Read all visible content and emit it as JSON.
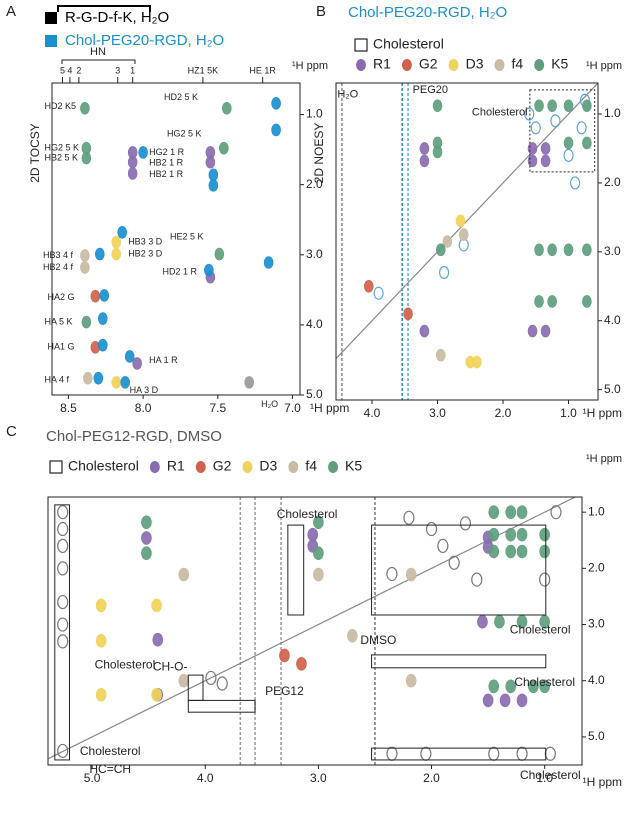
{
  "chart_data": [
    {
      "type": "scatter",
      "panel": "A",
      "ylabel": "2D TOCSY",
      "xlabel": "¹H ppm",
      "ylabel_right": "¹H ppm",
      "hn_label": "HN",
      "xlim": [
        8.61,
        6.95
      ],
      "ylim": [
        0.55,
        5.0
      ],
      "xticks": [
        8.5,
        {
          "value": 8,
          "label": "8.0"
        },
        7.5,
        {
          "value": 7,
          "label": "7.0"
        }
      ],
      "yticks": [
        {
          "value": 1,
          "label": "1.0"
        },
        {
          "value": 2,
          "label": "2.0"
        },
        {
          "value": 3,
          "label": "3.0"
        },
        {
          "value": 4,
          "label": "4.0"
        },
        {
          "value": 5,
          "label": "5.0"
        }
      ],
      "top_ticks": [
        {
          "value": 8.54,
          "label": "5"
        },
        {
          "value": 8.49,
          "label": "4"
        },
        {
          "value": 8.43,
          "label": "2"
        },
        {
          "value": 8.17,
          "label": "3"
        },
        {
          "value": 8.07,
          "label": "1"
        },
        {
          "value": 7.6,
          "label": "HZ1 5K"
        },
        {
          "value": 7.2,
          "label": "HE 1R"
        }
      ],
      "series": [
        {
          "name": "R-G-D-f-K, H₂O",
          "color": "#000000",
          "x": [
            8.39,
            8.38,
            8.38,
            8.07,
            8.07,
            8.07,
            7.44,
            7.46,
            7.55,
            7.55,
            8.39,
            8.39,
            8.18,
            8.18,
            7.49,
            7.55,
            8.32,
            8.38,
            8.32,
            8.04,
            8.37,
            8.18,
            7.29
          ],
          "y": [
            0.91,
            1.48,
            1.62,
            1.54,
            1.68,
            1.84,
            0.91,
            1.48,
            1.54,
            1.68,
            3.01,
            3.18,
            2.82,
            2.99,
            2.99,
            3.32,
            3.59,
            3.96,
            4.32,
            4.55,
            4.76,
            4.82,
            4.82
          ],
          "colors": [
            "#5e9e7e",
            "#5e9e7e",
            "#5e9e7e",
            "#8a6bb0",
            "#8a6bb0",
            "#8a6bb0",
            "#5e9e7e",
            "#5e9e7e",
            "#8a6bb0",
            "#8a6bb0",
            "#c9bba4",
            "#c9bba4",
            "#f0d35a",
            "#f0d35a",
            "#5e9e7e",
            "#8a6bb0",
            "#d0614c",
            "#5e9e7e",
            "#d0614c",
            "#8a6bb0",
            "#c9bba4",
            "#f0d35a",
            "#999999"
          ]
        },
        {
          "name": "Chol-PEG20-RGD, H₂O",
          "color": "#1a8fd0",
          "x": [
            7.11,
            7.11,
            8.0,
            7.53,
            7.53,
            8.29,
            8.14,
            7.16,
            7.56,
            8.26,
            8.27,
            8.27,
            8.09,
            8.3,
            8.12
          ],
          "y": [
            0.84,
            1.22,
            1.54,
            1.86,
            2.01,
            2.99,
            2.68,
            3.11,
            3.22,
            3.58,
            3.91,
            4.29,
            4.45,
            4.76,
            4.82
          ]
        }
      ],
      "annotations": [
        {
          "text": "HD2 K5",
          "x": 8.66,
          "y": 0.89
        },
        {
          "text": "HG2 5 K",
          "x": 8.66,
          "y": 1.48
        },
        {
          "text": "HB2 5 K",
          "x": 8.66,
          "y": 1.62
        },
        {
          "text": "HG2 1 R",
          "x": 7.96,
          "y": 1.54
        },
        {
          "text": "HB2 1 R",
          "x": 7.96,
          "y": 1.69
        },
        {
          "text": "HB2 1 R",
          "x": 7.96,
          "y": 1.86
        },
        {
          "text": "HD2 5 K",
          "x": 7.86,
          "y": 0.76
        },
        {
          "text": "HG2 5 K",
          "x": 7.84,
          "y": 1.28
        },
        {
          "text": "HB3 4 f",
          "x": 8.67,
          "y": 3.01
        },
        {
          "text": "HB2 4 f",
          "x": 8.67,
          "y": 3.18
        },
        {
          "text": "HB3 3 D",
          "x": 8.1,
          "y": 2.82
        },
        {
          "text": "HB2 3 D",
          "x": 8.1,
          "y": 2.99
        },
        {
          "text": "HE2 5 K",
          "x": 7.82,
          "y": 2.75
        },
        {
          "text": "HD2 1 R",
          "x": 7.87,
          "y": 3.25
        },
        {
          "text": "HA2 G",
          "x": 8.64,
          "y": 3.61
        },
        {
          "text": "HA 5 K",
          "x": 8.66,
          "y": 3.96
        },
        {
          "text": "HA1 G",
          "x": 8.64,
          "y": 4.32
        },
        {
          "text": "HA 1 R",
          "x": 7.96,
          "y": 4.51
        },
        {
          "text": "HA 4 f",
          "x": 8.66,
          "y": 4.79
        },
        {
          "text": "HA 3 D",
          "x": 8.09,
          "y": 4.94
        },
        {
          "text": "H₂O",
          "x": 7.21,
          "y": 5.14
        }
      ]
    },
    {
      "type": "scatter",
      "panel": "B",
      "title": "Chol-PEG20-RGD, H₂O",
      "title_color": "#1a8fd0",
      "ylabel": "2D NOESY",
      "xlabel": "¹H ppm",
      "ylabel_right": "¹H ppm",
      "xlim": [
        4.55,
        0.55
      ],
      "ylim": [
        0.55,
        5.15
      ],
      "diagonal": true,
      "xticks": [
        {
          "value": 4,
          "label": "4.0"
        },
        {
          "value": 3,
          "label": "3.0"
        },
        {
          "value": 2,
          "label": "2.0"
        },
        {
          "value": 1,
          "label": "1.0"
        }
      ],
      "yticks": [
        {
          "value": 1,
          "label": "1.0"
        },
        {
          "value": 2,
          "label": "2.0"
        },
        {
          "value": 3,
          "label": "3.0"
        },
        {
          "value": 4,
          "label": "4.0"
        },
        {
          "value": 5,
          "label": "5.0"
        }
      ],
      "streaks": [
        {
          "x": 4.46,
          "color": "#888888"
        },
        {
          "x": 3.54,
          "color": "#1a8fd0"
        },
        {
          "x": 3.45,
          "color": "#5aa5dc"
        }
      ],
      "regions": [
        {
          "x": [
            1.59,
            0.6
          ],
          "y": [
            0.65,
            1.84
          ]
        }
      ],
      "series": [
        {
          "name": "Cholesterol",
          "color": "#5aa5dc",
          "open": true,
          "x": [
            1.6,
            1.2,
            0.8,
            1.0,
            0.75,
            1.5,
            0.9,
            2.6,
            2.9,
            3.9
          ],
          "y": [
            1.0,
            1.1,
            1.2,
            1.6,
            0.8,
            1.2,
            2.0,
            2.9,
            3.3,
            3.6
          ]
        },
        {
          "name": "R1",
          "color": "#8a6bb0",
          "x": [
            1.55,
            1.35,
            1.55,
            1.35,
            3.2,
            3.2,
            3.2,
            1.55,
            1.35
          ],
          "y": [
            1.5,
            1.5,
            1.68,
            1.68,
            1.5,
            1.68,
            4.15,
            4.15,
            4.15
          ]
        },
        {
          "name": "G2",
          "color": "#d0614c",
          "x": [
            4.05,
            3.45
          ],
          "y": [
            3.5,
            3.9
          ]
        },
        {
          "name": "D3",
          "color": "#f0d35a",
          "x": [
            2.65,
            2.5,
            2.4
          ],
          "y": [
            2.55,
            4.6,
            4.6
          ]
        },
        {
          "name": "f4",
          "color": "#c9bba4",
          "x": [
            2.95,
            2.85,
            2.6
          ],
          "y": [
            4.5,
            2.85,
            2.75
          ]
        },
        {
          "name": "K5",
          "color": "#5e9e7e",
          "x": [
            1.45,
            1.25,
            1.0,
            0.72,
            1.0,
            0.72,
            3.0,
            3.0,
            3.0,
            1.45,
            1.25,
            1.0,
            0.72,
            1.45,
            1.25,
            0.72,
            2.95
          ],
          "y": [
            0.88,
            0.88,
            0.88,
            0.88,
            1.42,
            1.42,
            0.88,
            1.42,
            1.55,
            2.97,
            2.97,
            2.97,
            2.97,
            3.72,
            3.72,
            3.72,
            2.97
          ]
        }
      ],
      "annotations": [
        {
          "text": "H₂O",
          "x": 4.37,
          "y": 0.72
        },
        {
          "text": "PEG20",
          "x": 3.11,
          "y": 0.65
        },
        {
          "text": "Cholesterol",
          "x": 2.05,
          "y": 0.98
        }
      ]
    },
    {
      "type": "scatter",
      "panel": "C",
      "title": "Chol-PEG12-RGD, DMSO",
      "title_color": "#555555",
      "xlabel": "¹H ppm",
      "ylabel_right": "¹H ppm",
      "xlim": [
        5.39,
        0.67
      ],
      "ylim": [
        0.73,
        5.5
      ],
      "diagonal": true,
      "xticks": [
        {
          "value": 5,
          "label": "5.0"
        },
        {
          "value": 4,
          "label": "4.0"
        },
        {
          "value": 3,
          "label": "3.0"
        },
        {
          "value": 2,
          "label": "2.0"
        },
        {
          "value": 1,
          "label": "1.0"
        }
      ],
      "yticks": [
        {
          "value": 1,
          "label": "1.0"
        },
        {
          "value": 2,
          "label": "2.0"
        },
        {
          "value": 3,
          "label": "3.0"
        },
        {
          "value": 4,
          "label": "4.0"
        },
        {
          "value": 5,
          "label": "5.0"
        }
      ],
      "streaks": [
        {
          "x": 3.69,
          "color": "#999999"
        },
        {
          "x": 3.56,
          "color": "#999999"
        },
        {
          "x": 3.33,
          "color": "#999999"
        },
        {
          "x": 2.5,
          "color": "#777777"
        }
      ],
      "regions": [
        {
          "x": [
            5.33,
            5.2
          ],
          "y": [
            0.87,
            5.41
          ]
        },
        {
          "x": [
            3.27,
            3.13
          ],
          "y": [
            1.23,
            2.83
          ]
        },
        {
          "x": [
            2.53,
            0.99
          ],
          "y": [
            1.23,
            2.83
          ]
        },
        {
          "x": [
            2.53,
            0.99
          ],
          "y": [
            3.54,
            3.77
          ]
        },
        {
          "x": [
            2.53,
            0.99
          ],
          "y": [
            5.2,
            5.41
          ]
        },
        {
          "x": [
            4.15,
            4.02
          ],
          "y": [
            3.9,
            4.35
          ]
        },
        {
          "x": [
            4.15,
            3.56
          ],
          "y": [
            4.35,
            4.56
          ]
        }
      ],
      "series": [
        {
          "name": "Cholesterol",
          "color": "#777777",
          "open": true,
          "x": [
            5.26,
            5.26,
            5.26,
            5.26,
            5.26,
            5.26,
            5.26,
            5.26,
            2.35,
            2.05,
            1.45,
            1.2,
            0.95,
            3.95,
            3.85,
            2.2,
            2.0,
            1.9,
            1.8,
            2.35,
            1.7,
            1.6,
            1.0,
            0.9
          ],
          "y": [
            1.0,
            1.3,
            1.6,
            2.0,
            2.6,
            3.0,
            3.3,
            5.25,
            5.3,
            5.3,
            5.3,
            5.3,
            5.3,
            3.95,
            4.05,
            1.1,
            1.3,
            1.6,
            1.9,
            2.1,
            1.2,
            2.2,
            2.2,
            1.0
          ]
        },
        {
          "name": "R1",
          "color": "#8a6bb0",
          "x": [
            4.52,
            3.05,
            3.05,
            1.5,
            1.5,
            4.42,
            4.42,
            1.55,
            1.5,
            1.35,
            1.2
          ],
          "y": [
            1.46,
            1.4,
            1.6,
            1.45,
            1.62,
            3.27,
            4.25,
            2.95,
            4.35,
            4.35,
            4.35
          ]
        },
        {
          "name": "G2",
          "color": "#d0614c",
          "x": [
            3.15,
            3.3
          ],
          "y": [
            3.7,
            3.55
          ]
        },
        {
          "name": "D3",
          "color": "#f0d35a",
          "x": [
            4.92,
            4.43,
            4.92,
            4.92,
            4.43
          ],
          "y": [
            2.66,
            2.66,
            3.29,
            4.25,
            4.25
          ]
        },
        {
          "name": "f4",
          "color": "#c9bba4",
          "x": [
            4.19,
            3.0,
            2.18,
            2.18,
            2.7,
            4.19
          ],
          "y": [
            2.11,
            2.11,
            2.11,
            4.0,
            3.2,
            4.0
          ]
        },
        {
          "name": "K5",
          "color": "#5e9e7e",
          "x": [
            4.52,
            4.52,
            3.0,
            3.0,
            1.45,
            1.3,
            1.2,
            1.45,
            1.3,
            1.2,
            1.0,
            1.45,
            1.3,
            1.2,
            1.0,
            1.4,
            1.2,
            1.0,
            1.45,
            1.3,
            1.1,
            1.0
          ],
          "y": [
            1.18,
            1.73,
            1.18,
            1.73,
            1.0,
            1.0,
            1.0,
            1.4,
            1.4,
            1.4,
            1.4,
            1.7,
            1.7,
            1.7,
            1.7,
            2.95,
            2.95,
            2.95,
            4.1,
            4.1,
            4.1,
            4.1
          ]
        }
      ],
      "annotations": [
        {
          "text": "Cholesterol",
          "x": 3.1,
          "y": 1.05
        },
        {
          "text": "Cholesterol",
          "x": 1.04,
          "y": 3.1
        },
        {
          "text": "Cholesterol",
          "x": 1.0,
          "y": 4.04
        },
        {
          "text": "Cholesterol",
          "x": 0.95,
          "y": 5.69
        },
        {
          "text": "Cholesterol",
          "x": 4.71,
          "y": 3.73
        },
        {
          "text": "CH-O-",
          "x": 4.31,
          "y": 3.76
        },
        {
          "text": "PEG12",
          "x": 3.3,
          "y": 4.2
        },
        {
          "text": "DMSO",
          "x": 2.47,
          "y": 3.29
        },
        {
          "text": "Cholesterol",
          "x": 4.84,
          "y": 5.27
        },
        {
          "text": "HC=CH",
          "x": 4.84,
          "y": 5.59
        }
      ]
    }
  ]
}
